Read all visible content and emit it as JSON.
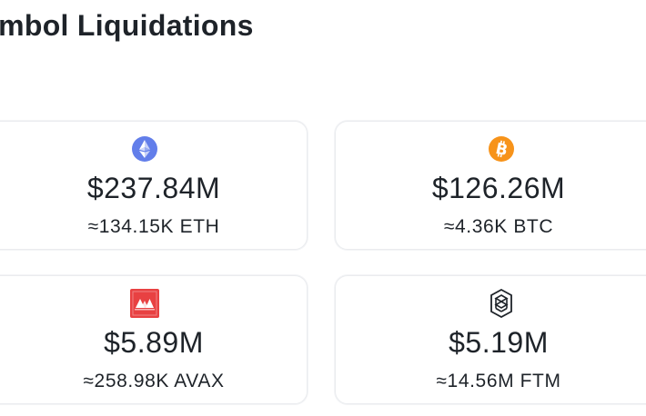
{
  "section": {
    "title": "ymbol Liquidations"
  },
  "cards": [
    {
      "icon": "ethereum-icon",
      "amount": "$237.84M",
      "sub": "≈134.15K ETH",
      "color": "#627eea"
    },
    {
      "icon": "bitcoin-icon",
      "amount": "$126.26M",
      "sub": "≈4.36K BTC",
      "color": "#f7931a"
    },
    {
      "icon": "avalanche-icon",
      "amount": "$5.89M",
      "sub": "≈258.98K AVAX",
      "color": "#e84142"
    },
    {
      "icon": "fantom-icon",
      "amount": "$5.19M",
      "sub": "≈14.56M FTM",
      "color": "#1e2329"
    }
  ]
}
